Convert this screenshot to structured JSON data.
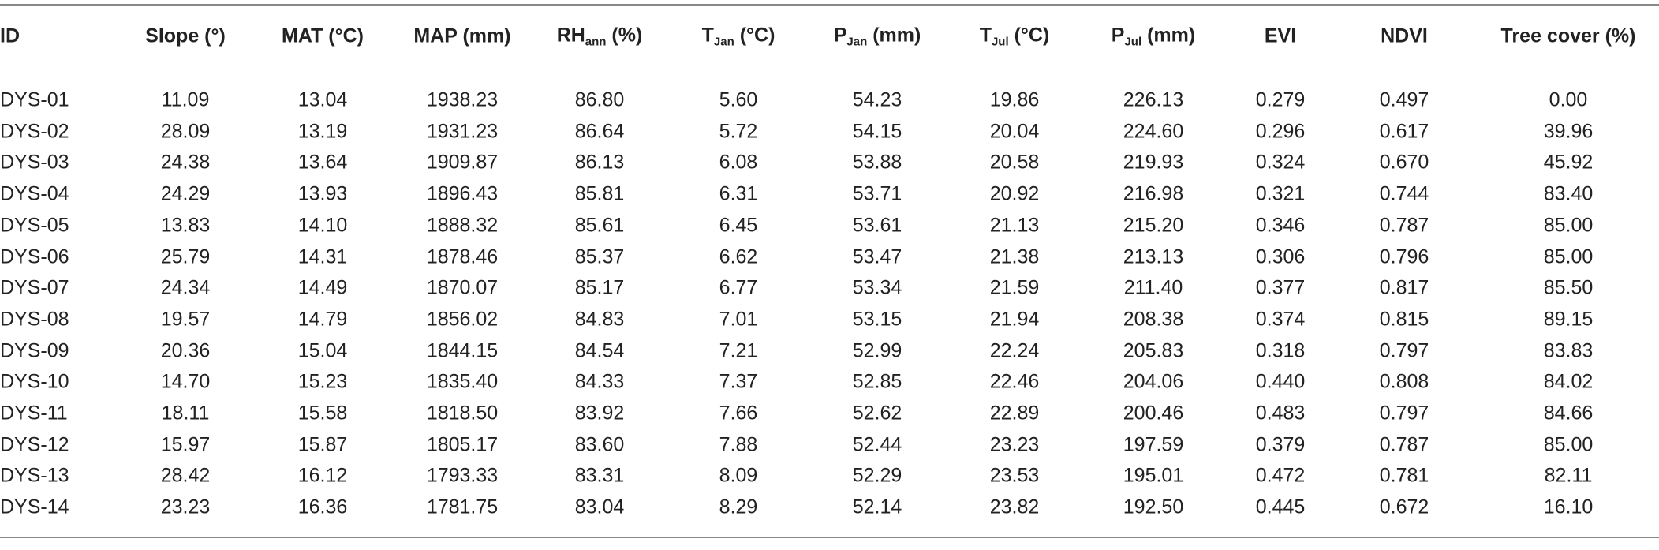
{
  "table": {
    "headers": [
      "ID",
      "Slope (°)",
      "MAT (°C)",
      "MAP (mm)",
      {
        "main": "RH",
        "sub": "ann",
        "rest": " (%)"
      },
      {
        "main": "T",
        "sub": "Jan",
        "rest": " (°C)"
      },
      {
        "main": "P",
        "sub": "Jan",
        "rest": " (mm)"
      },
      {
        "main": "T",
        "sub": "Jul",
        "rest": " (°C)"
      },
      {
        "main": "P",
        "sub": "Jul",
        "rest": " (mm)"
      },
      "EVI",
      "NDVI",
      "Tree cover (%)"
    ],
    "rows": [
      [
        "DYS-01",
        "11.09",
        "13.04",
        "1938.23",
        "86.80",
        "5.60",
        "54.23",
        "19.86",
        "226.13",
        "0.279",
        "0.497",
        "0.00"
      ],
      [
        "DYS-02",
        "28.09",
        "13.19",
        "1931.23",
        "86.64",
        "5.72",
        "54.15",
        "20.04",
        "224.60",
        "0.296",
        "0.617",
        "39.96"
      ],
      [
        "DYS-03",
        "24.38",
        "13.64",
        "1909.87",
        "86.13",
        "6.08",
        "53.88",
        "20.58",
        "219.93",
        "0.324",
        "0.670",
        "45.92"
      ],
      [
        "DYS-04",
        "24.29",
        "13.93",
        "1896.43",
        "85.81",
        "6.31",
        "53.71",
        "20.92",
        "216.98",
        "0.321",
        "0.744",
        "83.40"
      ],
      [
        "DYS-05",
        "13.83",
        "14.10",
        "1888.32",
        "85.61",
        "6.45",
        "53.61",
        "21.13",
        "215.20",
        "0.346",
        "0.787",
        "85.00"
      ],
      [
        "DYS-06",
        "25.79",
        "14.31",
        "1878.46",
        "85.37",
        "6.62",
        "53.47",
        "21.38",
        "213.13",
        "0.306",
        "0.796",
        "85.00"
      ],
      [
        "DYS-07",
        "24.34",
        "14.49",
        "1870.07",
        "85.17",
        "6.77",
        "53.34",
        "21.59",
        "211.40",
        "0.377",
        "0.817",
        "85.50"
      ],
      [
        "DYS-08",
        "19.57",
        "14.79",
        "1856.02",
        "84.83",
        "7.01",
        "53.15",
        "21.94",
        "208.38",
        "0.374",
        "0.815",
        "89.15"
      ],
      [
        "DYS-09",
        "20.36",
        "15.04",
        "1844.15",
        "84.54",
        "7.21",
        "52.99",
        "22.24",
        "205.83",
        "0.318",
        "0.797",
        "83.83"
      ],
      [
        "DYS-10",
        "14.70",
        "15.23",
        "1835.40",
        "84.33",
        "7.37",
        "52.85",
        "22.46",
        "204.06",
        "0.440",
        "0.808",
        "84.02"
      ],
      [
        "DYS-11",
        "18.11",
        "15.58",
        "1818.50",
        "83.92",
        "7.66",
        "52.62",
        "22.89",
        "200.46",
        "0.483",
        "0.797",
        "84.66"
      ],
      [
        "DYS-12",
        "15.97",
        "15.87",
        "1805.17",
        "83.60",
        "7.88",
        "52.44",
        "23.23",
        "197.59",
        "0.379",
        "0.787",
        "85.00"
      ],
      [
        "DYS-13",
        "28.42",
        "16.12",
        "1793.33",
        "83.31",
        "8.09",
        "52.29",
        "23.53",
        "195.01",
        "0.472",
        "0.781",
        "82.11"
      ],
      [
        "DYS-14",
        "23.23",
        "16.36",
        "1781.75",
        "83.04",
        "8.29",
        "52.14",
        "23.82",
        "192.50",
        "0.445",
        "0.672",
        "16.10"
      ]
    ]
  }
}
